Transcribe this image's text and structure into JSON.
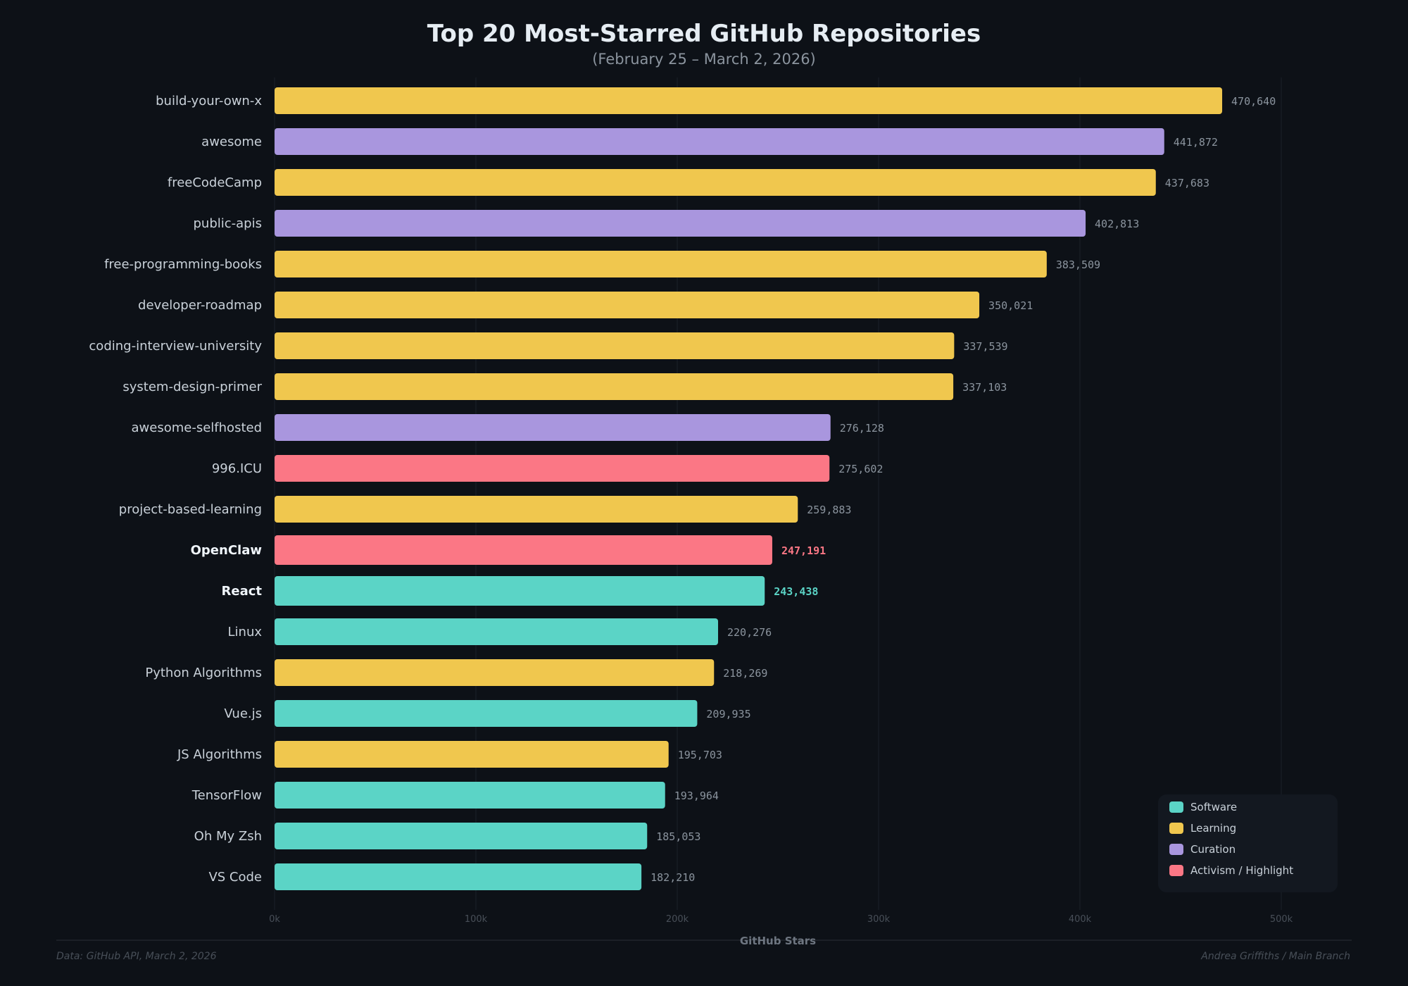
{
  "chart_data": {
    "type": "bar",
    "orientation": "horizontal",
    "title": "Top 20 Most-Starred GitHub Repositories",
    "subtitle": "(February 25 – March 2, 2026)",
    "xlabel": "GitHub Stars",
    "xlim": [
      0,
      500000
    ],
    "xticks": [
      0,
      100000,
      200000,
      300000,
      400000,
      500000
    ],
    "xtick_labels": [
      "0k",
      "100k",
      "200k",
      "300k",
      "400k",
      "500k"
    ],
    "grid": "vertical",
    "legend_position": "bottom-right",
    "legend": [
      {
        "key": "software",
        "label": "Software",
        "color": "#5bd4c6"
      },
      {
        "key": "learning",
        "label": "Learning",
        "color": "#f0c74e"
      },
      {
        "key": "curation",
        "label": "Curation",
        "color": "#a996de"
      },
      {
        "key": "activism",
        "label": "Activism / Highlight",
        "color": "#fb7785"
      }
    ],
    "bars": [
      {
        "name": "build-your-own-x",
        "value": 470640,
        "label": "470,640",
        "category": "learning"
      },
      {
        "name": "awesome",
        "value": 441872,
        "label": "441,872",
        "category": "curation"
      },
      {
        "name": "freeCodeCamp",
        "value": 437683,
        "label": "437,683",
        "category": "learning"
      },
      {
        "name": "public-apis",
        "value": 402813,
        "label": "402,813",
        "category": "curation"
      },
      {
        "name": "free-programming-books",
        "value": 383509,
        "label": "383,509",
        "category": "learning"
      },
      {
        "name": "developer-roadmap",
        "value": 350021,
        "label": "350,021",
        "category": "learning"
      },
      {
        "name": "coding-interview-university",
        "value": 337539,
        "label": "337,539",
        "category": "learning"
      },
      {
        "name": "system-design-primer",
        "value": 337103,
        "label": "337,103",
        "category": "learning"
      },
      {
        "name": "awesome-selfhosted",
        "value": 276128,
        "label": "276,128",
        "category": "curation"
      },
      {
        "name": "996.ICU",
        "value": 275602,
        "label": "275,602",
        "category": "activism"
      },
      {
        "name": "project-based-learning",
        "value": 259883,
        "label": "259,883",
        "category": "learning"
      },
      {
        "name": "OpenClaw",
        "value": 247191,
        "label": "247,191",
        "category": "activism",
        "highlight": true
      },
      {
        "name": "React",
        "value": 243438,
        "label": "243,438",
        "category": "software",
        "highlight": true
      },
      {
        "name": "Linux",
        "value": 220276,
        "label": "220,276",
        "category": "software"
      },
      {
        "name": "Python Algorithms",
        "value": 218269,
        "label": "218,269",
        "category": "learning"
      },
      {
        "name": "Vue.js",
        "value": 209935,
        "label": "209,935",
        "category": "software"
      },
      {
        "name": "JS Algorithms",
        "value": 195703,
        "label": "195,703",
        "category": "learning"
      },
      {
        "name": "TensorFlow",
        "value": 193964,
        "label": "193,964",
        "category": "software"
      },
      {
        "name": "Oh My Zsh",
        "value": 185053,
        "label": "185,053",
        "category": "software"
      },
      {
        "name": "VS Code",
        "value": 182210,
        "label": "182,210",
        "category": "software"
      }
    ]
  },
  "footer": {
    "source": "Data: GitHub API, March 2, 2026",
    "credit": "Andrea Griffiths / Main Branch"
  },
  "colors": {
    "background": "#0d1117",
    "grid": "#1c2128",
    "value_label": "#8b949e"
  }
}
